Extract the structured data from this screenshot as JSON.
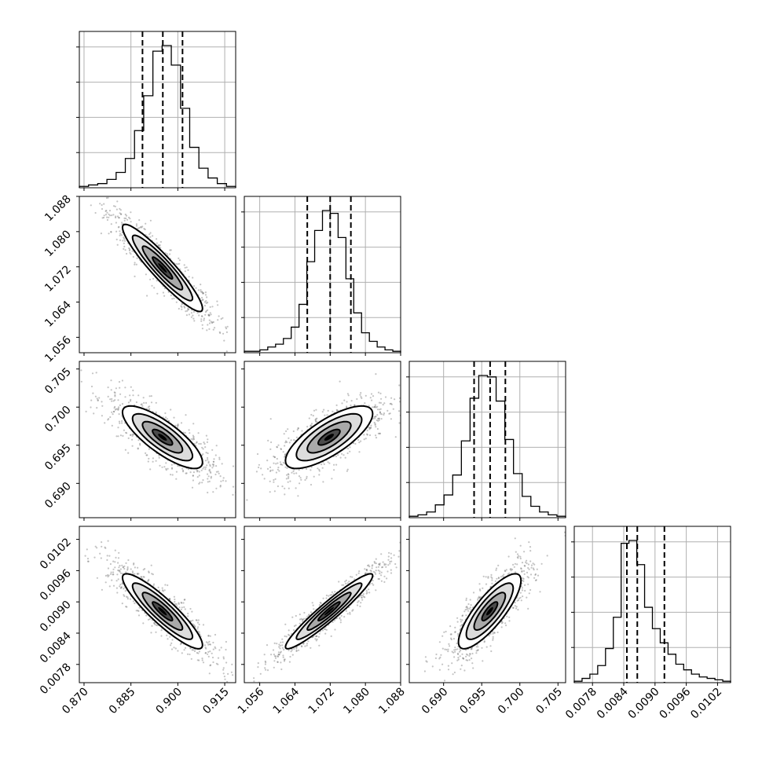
{
  "chart_data": {
    "type": "corner",
    "title": "",
    "parameters": [
      {
        "range": [
          0.8685,
          0.9185
        ],
        "ticks": [
          "0.870",
          "0.885",
          "0.900",
          "0.915"
        ],
        "quantiles": [
          0.8887,
          0.8952,
          0.9015
        ],
        "hist": [
          1,
          2,
          3,
          6,
          11,
          21,
          41,
          66,
          98,
          102,
          88,
          57,
          29,
          14,
          7,
          3,
          1
        ],
        "density_center": [
          0.895
        ],
        "grid": true
      },
      {
        "range": [
          1.0525,
          1.088
        ],
        "ticks": [
          "1.056",
          "1.064",
          "1.072",
          "1.080",
          "1.088"
        ],
        "quantiles": [
          1.0668,
          1.072,
          1.0767
        ],
        "hist": [
          1,
          1,
          2,
          4,
          6,
          10,
          18,
          34,
          64,
          86,
          100,
          98,
          81,
          52,
          28,
          14,
          8,
          4,
          2,
          1
        ],
        "grid": true
      },
      {
        "range": [
          0.6855,
          0.706
        ],
        "ticks": [
          "0.690",
          "0.695",
          "0.700",
          "0.705"
        ],
        "quantiles": [
          0.694,
          0.6961,
          0.6981
        ],
        "hist": [
          1,
          2,
          4,
          9,
          16,
          30,
          54,
          84,
          100,
          99,
          82,
          55,
          31,
          15,
          8,
          4,
          2,
          1
        ],
        "grid": true
      },
      {
        "range": [
          0.00745,
          0.01045
        ],
        "ticks": [
          "0.0078",
          "0.0084",
          "0.0090",
          "0.0096",
          "0.0102"
        ],
        "quantiles": [
          0.00846,
          0.00866,
          0.00918
        ],
        "hist": [
          1,
          3,
          6,
          12,
          24,
          46,
          98,
          100,
          83,
          53,
          38,
          28,
          20,
          13,
          9,
          6,
          4,
          3,
          2,
          1
        ],
        "grid": true
      }
    ],
    "pairs": [
      {
        "row": 1,
        "col": 0,
        "correlation": -0.93
      },
      {
        "row": 2,
        "col": 0,
        "correlation": -0.8
      },
      {
        "row": 2,
        "col": 1,
        "correlation": 0.75
      },
      {
        "row": 3,
        "col": 0,
        "correlation": -0.9
      },
      {
        "row": 3,
        "col": 1,
        "correlation": 0.95
      },
      {
        "row": 3,
        "col": 2,
        "correlation": 0.82
      }
    ],
    "legend": "none"
  }
}
